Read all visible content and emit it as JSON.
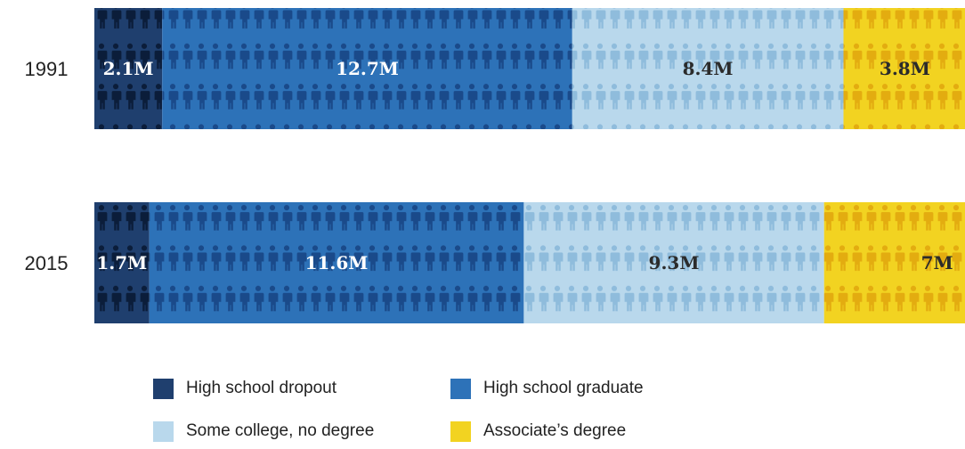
{
  "chart_data": {
    "type": "bar",
    "orientation": "horizontal",
    "stacked": true,
    "categories": [
      "1991",
      "2015"
    ],
    "series": [
      {
        "name": "High school dropout",
        "values": [
          2.1,
          1.7
        ],
        "labels": [
          "2.1M",
          "1.7M"
        ],
        "color": "#1f3f6e",
        "pattern_color": "#0b1d3a"
      },
      {
        "name": "High school graduate",
        "values": [
          12.7,
          11.6
        ],
        "labels": [
          "12.7M",
          "11.6M"
        ],
        "color": "#2d72b8",
        "pattern_color": "#1a4a8a"
      },
      {
        "name": "Some college, no degree",
        "values": [
          8.4,
          9.3
        ],
        "labels": [
          "8.4M",
          "9.3M"
        ],
        "color": "#b9d8ec",
        "pattern_color": "#8fbcdc"
      },
      {
        "name": "Associate’s degree",
        "values": [
          3.8,
          7.0
        ],
        "labels": [
          "3.8M",
          "7M"
        ],
        "color": "#f2d321",
        "pattern_color": "#e3ac10"
      }
    ],
    "legend_position": "bottom",
    "grid": false,
    "axes": false
  },
  "legend": {
    "items": [
      {
        "label": "High school dropout",
        "color": "#1f3f6e"
      },
      {
        "label": "High school graduate",
        "color": "#2d72b8"
      },
      {
        "label": "Some college, no degree",
        "color": "#b9d8ec"
      },
      {
        "label": "Associate’s degree",
        "color": "#f2d321"
      }
    ]
  }
}
